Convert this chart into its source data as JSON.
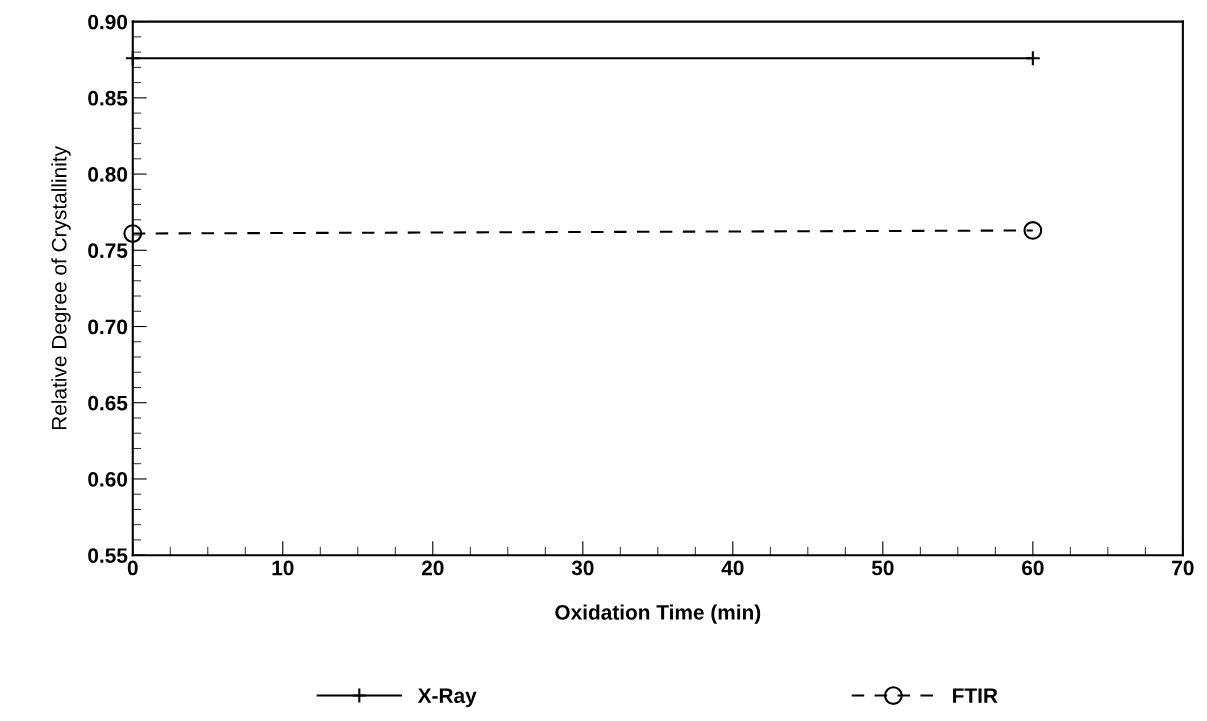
{
  "chart_data": {
    "type": "line",
    "xlabel": "Oxidation Time (min)",
    "ylabel": "Relative Degree of Crystallinity",
    "xlim": [
      0,
      70
    ],
    "xticks": [
      0,
      10,
      20,
      30,
      40,
      50,
      60,
      70
    ],
    "ylim": [
      0.55,
      0.9
    ],
    "yticks": [
      0.55,
      {
        "value": 0.6,
        "label": "0.60"
      },
      0.65,
      {
        "value": 0.7,
        "label": "0.70"
      },
      0.75,
      {
        "value": 0.8,
        "label": "0.80"
      },
      0.85,
      {
        "value": 0.9,
        "label": "0.90"
      }
    ],
    "grid": false,
    "legend": "bottom",
    "x": [
      0,
      60
    ],
    "series": [
      {
        "name": "X-Ray",
        "color": "#000000",
        "values": [
          0.876,
          0.876
        ],
        "marker": "cross",
        "line_style": "solid"
      },
      {
        "name": "FTIR",
        "color": "#000000",
        "values": [
          0.761,
          0.763
        ],
        "marker": "circle",
        "line_style": "dashed"
      }
    ]
  }
}
